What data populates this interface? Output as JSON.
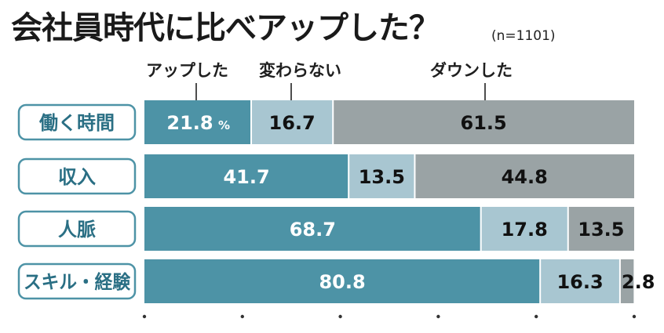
{
  "header": {
    "title": "会社員時代に比べアップした？",
    "sample": "(n=1101)"
  },
  "colors": {
    "up": "#4d93a6",
    "same": "#a8c6d1",
    "down": "#9aa3a5",
    "label_border": "#4d93a6",
    "label_text": "#2a6f84"
  },
  "chart_data": {
    "type": "bar",
    "orientation": "horizontal",
    "stacked": true,
    "categories": [
      "働く時間",
      "収入",
      "人脈",
      "スキル・経験"
    ],
    "series": [
      {
        "name": "アップした",
        "values": [
          21.8,
          41.7,
          68.7,
          80.8
        ]
      },
      {
        "name": "変わらない",
        "values": [
          16.7,
          13.5,
          17.8,
          16.3
        ]
      },
      {
        "name": "ダウンした",
        "values": [
          61.5,
          44.8,
          13.5,
          2.8
        ]
      }
    ],
    "unit_suffix": "%",
    "legend_position": "top",
    "xlim": [
      0,
      100
    ]
  }
}
